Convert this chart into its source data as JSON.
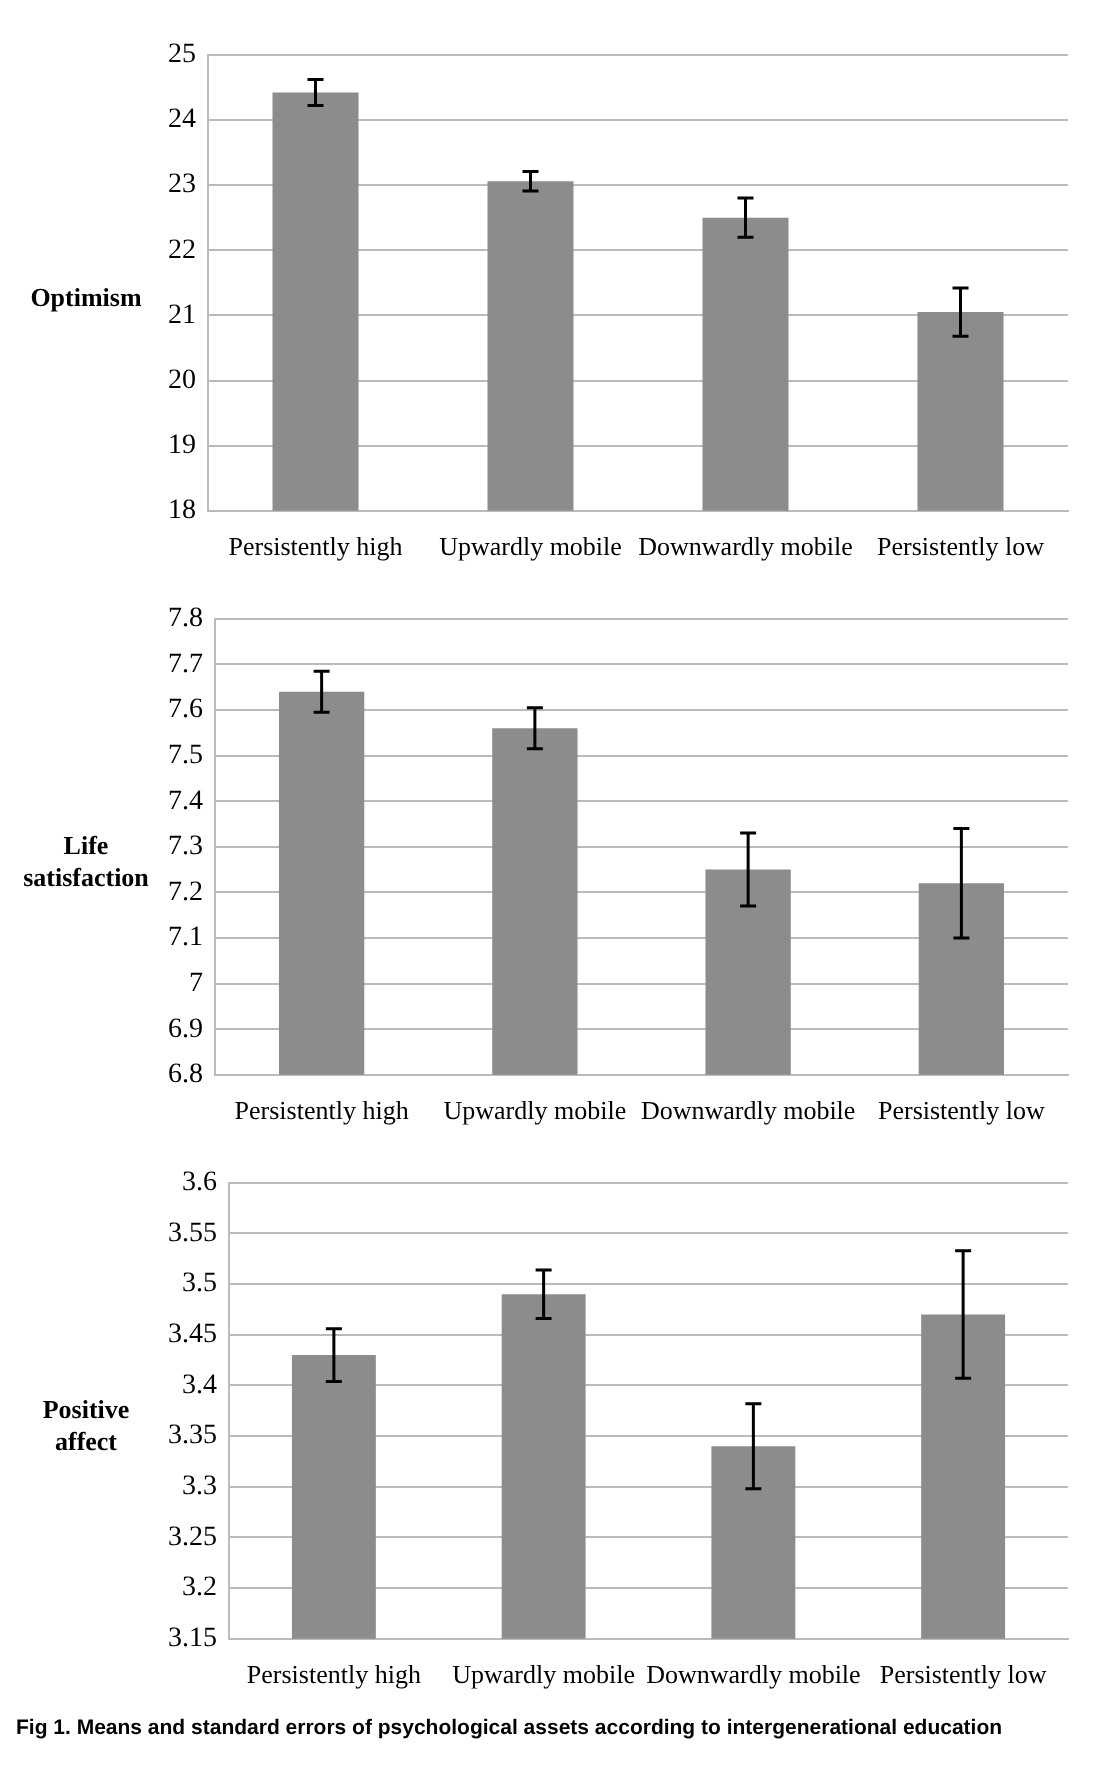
{
  "chart_data": [
    {
      "type": "bar",
      "ylabel": "Optimism",
      "categories": [
        "Persistently high",
        "Upwardly mobile",
        "Downwardly mobile",
        "Persistently low"
      ],
      "values": [
        24.42,
        23.06,
        22.5,
        21.05
      ],
      "errors": [
        0.2,
        0.15,
        0.3,
        0.37
      ],
      "color": "#8c8c8c",
      "ylim": [
        18,
        25
      ],
      "yticks": [
        18,
        19,
        20,
        21,
        22,
        23,
        24,
        25
      ],
      "grid": "y"
    },
    {
      "type": "bar",
      "ylabel": "Life satisfaction",
      "categories": [
        "Persistently high",
        "Upwardly mobile",
        "Downwardly mobile",
        "Persistently low"
      ],
      "values": [
        7.64,
        7.56,
        7.25,
        7.22
      ],
      "errors": [
        0.045,
        0.045,
        0.08,
        0.12
      ],
      "color": "#8c8c8c",
      "ylim": [
        6.8,
        7.8
      ],
      "yticks": [
        6.8,
        6.9,
        7,
        7.1,
        7.2,
        7.3,
        7.4,
        7.5,
        7.6,
        7.7,
        7.8
      ],
      "grid": "y"
    },
    {
      "type": "bar",
      "ylabel": "Positive affect",
      "categories": [
        "Persistently high",
        "Upwardly mobile",
        "Downwardly mobile",
        "Persistently low"
      ],
      "values": [
        3.43,
        3.49,
        3.34,
        3.47
      ],
      "errors": [
        0.026,
        0.024,
        0.042,
        0.063
      ],
      "color": "#8c8c8c",
      "ylim": [
        3.15,
        3.6
      ],
      "yticks": [
        3.15,
        3.2,
        3.25,
        3.3,
        3.35,
        3.4,
        3.45,
        3.5,
        3.55,
        3.6
      ],
      "grid": "y",
      "annotations": [
        "Fig 1. Means and standard errors of psychological assets according to intergenerational education"
      ]
    }
  ]
}
